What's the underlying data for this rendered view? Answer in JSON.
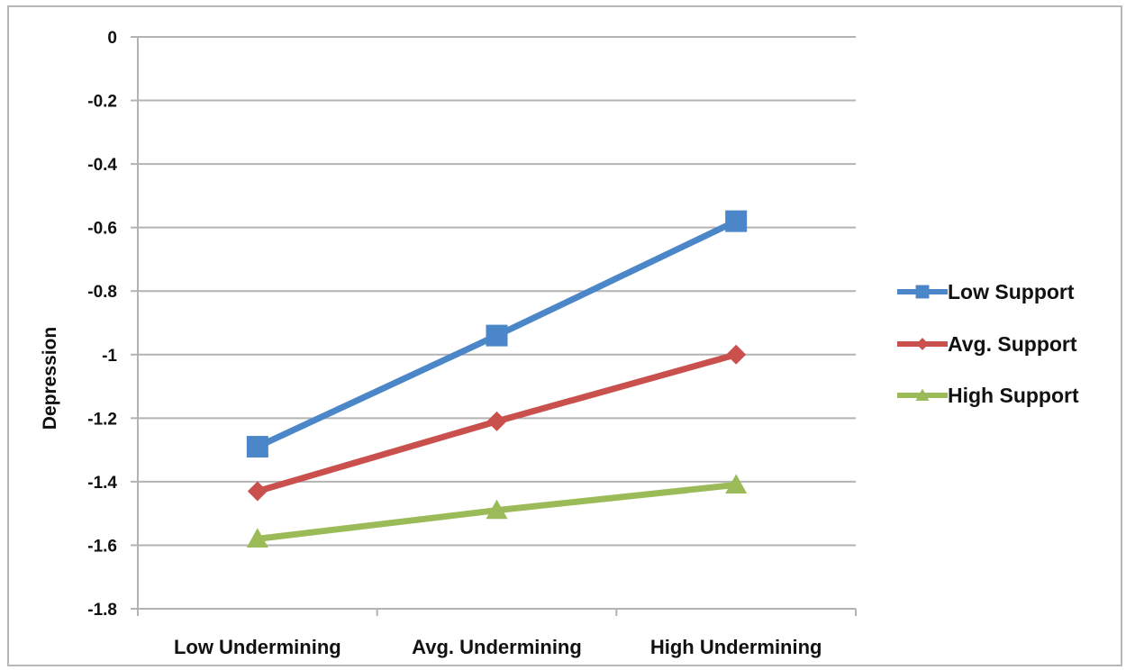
{
  "chart_data": {
    "type": "line",
    "title": "",
    "xlabel": "",
    "ylabel": "Depression",
    "ylim": [
      -1.8,
      0
    ],
    "ytick_values": [
      0,
      -0.2,
      -0.4,
      -0.6,
      -0.8,
      -1,
      -1.2,
      -1.4,
      -1.6,
      -1.8
    ],
    "ytick_labels": [
      "0",
      "-0.2",
      "-0.4",
      "-0.6",
      "-0.8",
      "-1",
      "-1.2",
      "-1.4",
      "-1.6",
      "-1.8"
    ],
    "categories": [
      "Low Undermining",
      "Avg. Undermining",
      "High Undermining"
    ],
    "grid": true,
    "legend_position": "right",
    "series": [
      {
        "name": "Low Support",
        "values": [
          -1.29,
          -0.94,
          -0.58
        ],
        "color": "#4a86c8",
        "marker": "square"
      },
      {
        "name": "Avg. Support",
        "values": [
          -1.43,
          -1.21,
          -1.0
        ],
        "color": "#c9504c",
        "marker": "diamond"
      },
      {
        "name": "High Support",
        "values": [
          -1.58,
          -1.49,
          -1.41
        ],
        "color": "#9bbb59",
        "marker": "triangle"
      }
    ]
  }
}
